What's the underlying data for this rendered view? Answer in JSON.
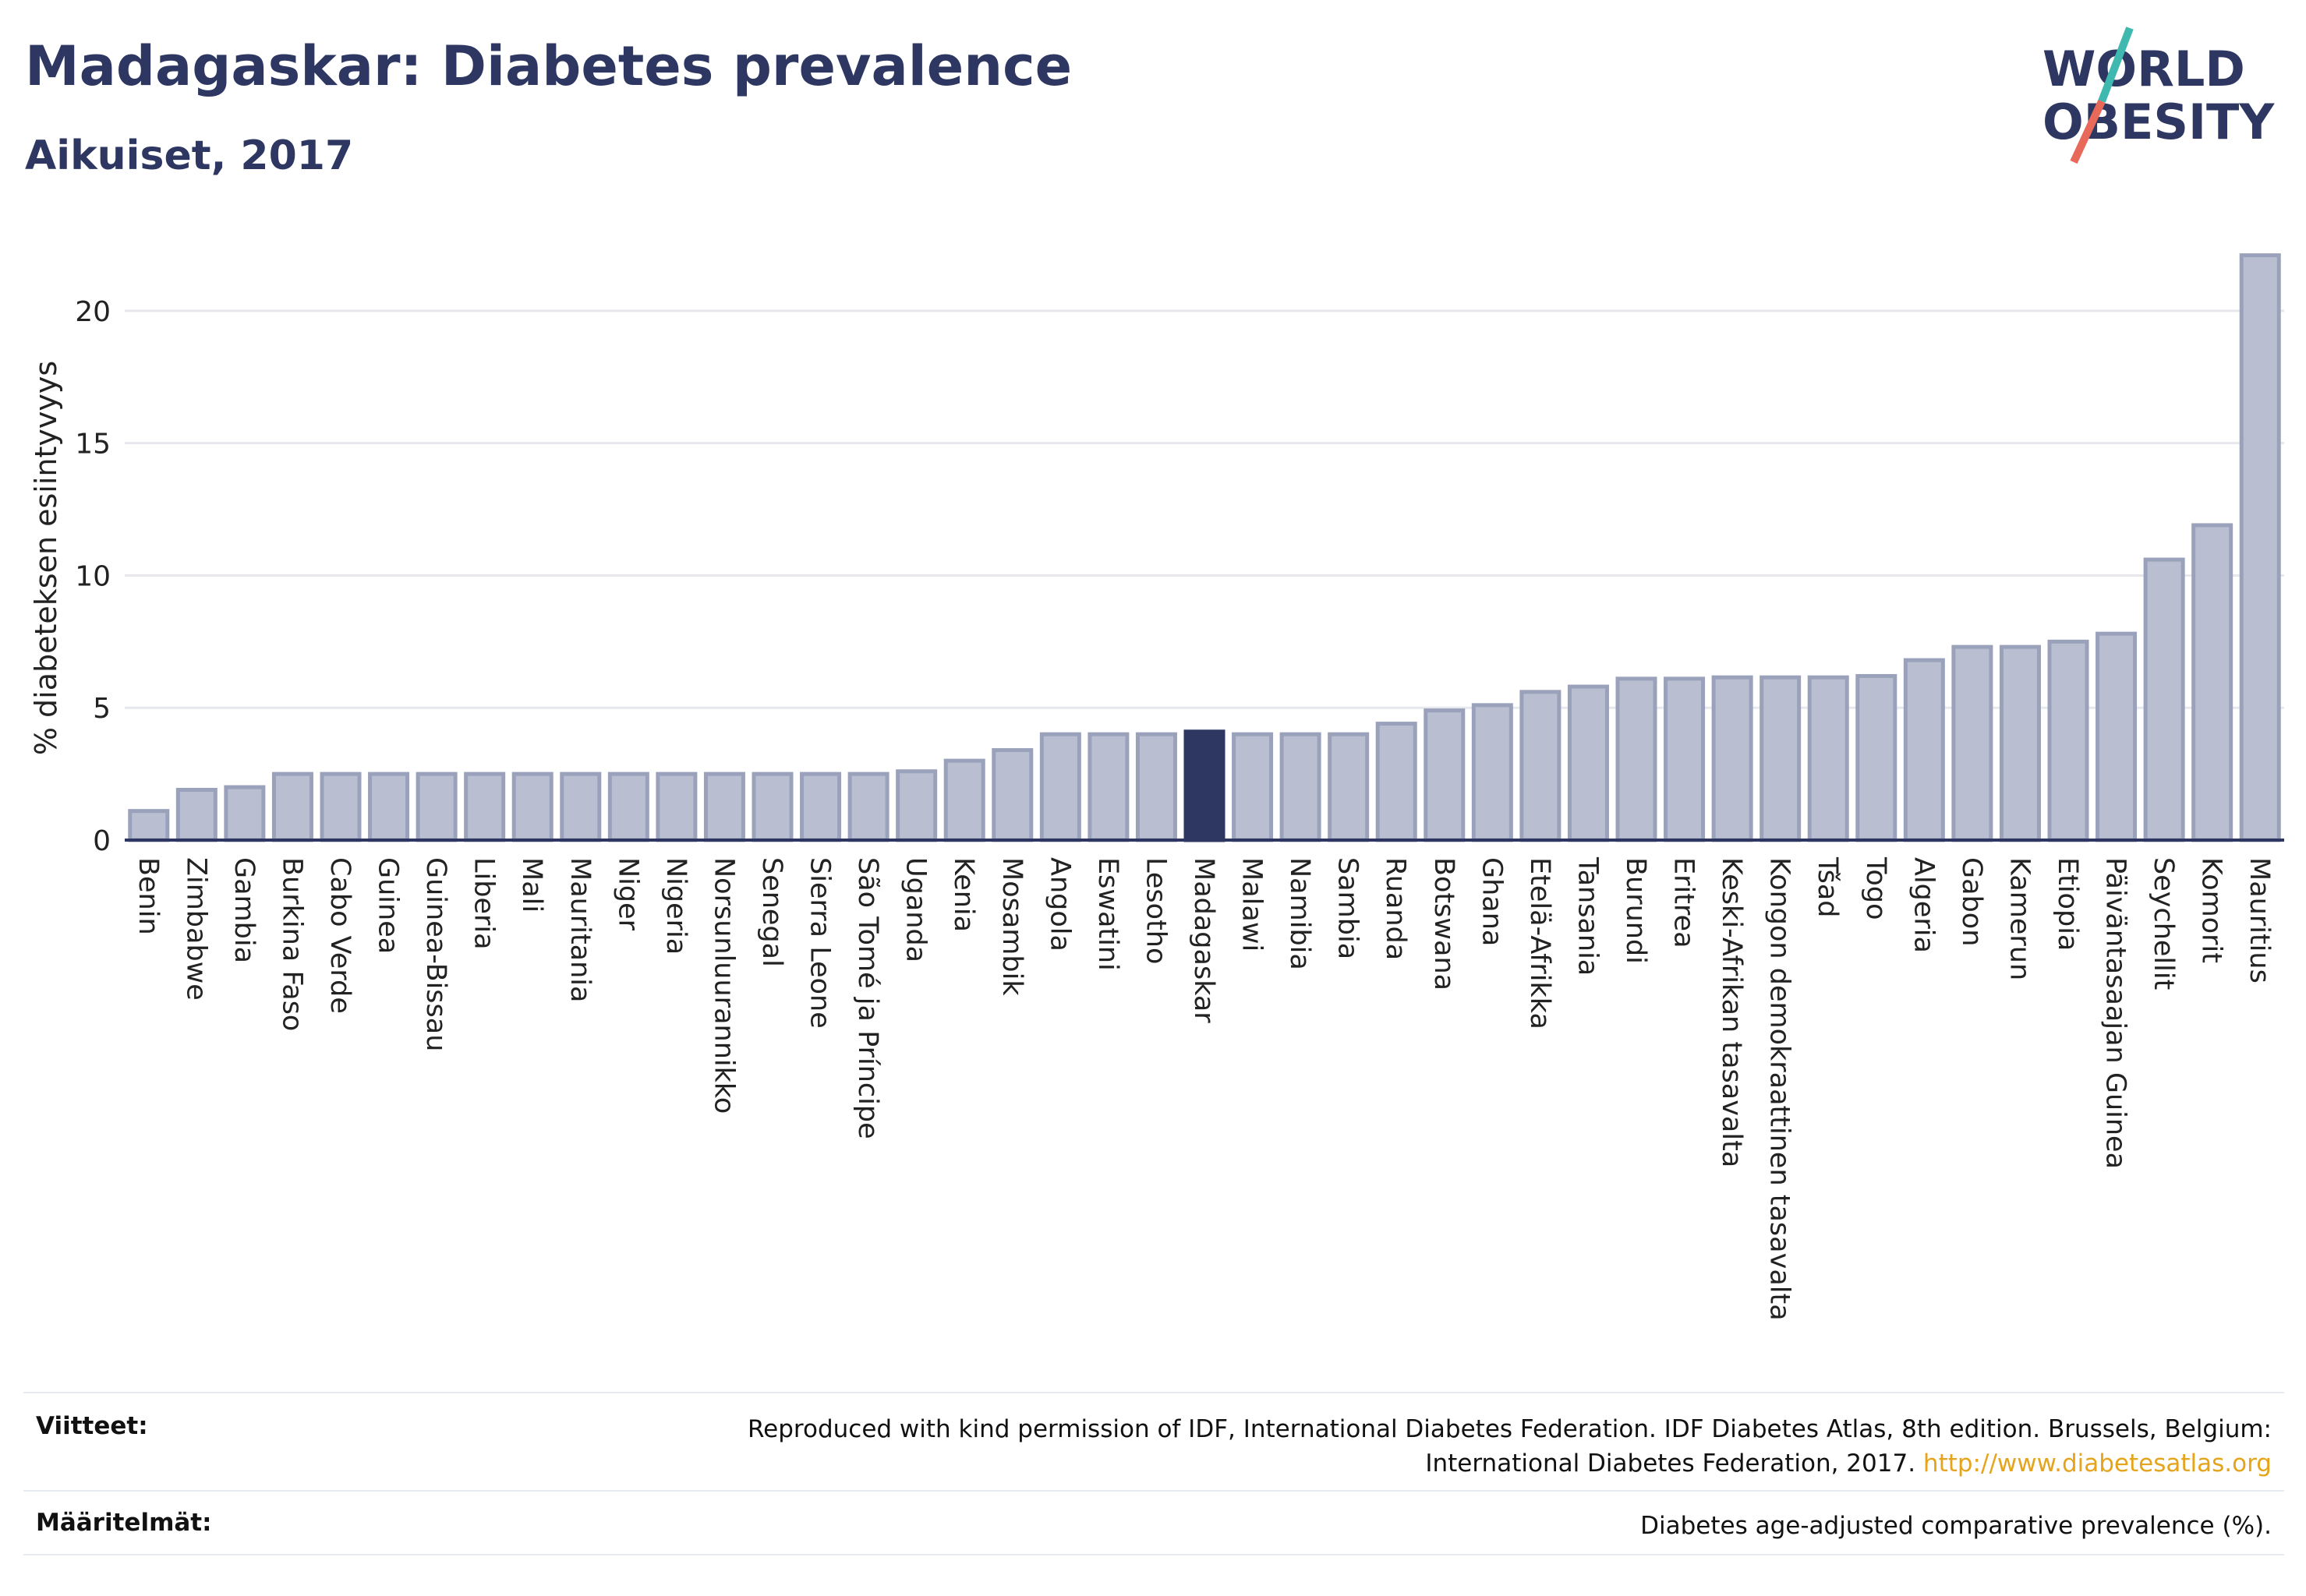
{
  "header": {
    "title": "Madagaskar: Diabetes prevalence",
    "subtitle": "Aikuiset, 2017"
  },
  "logo": {
    "line1": "WORLD",
    "line2": "OBESITY",
    "accent_teal": "#3fb8b0",
    "accent_red": "#e8695a",
    "text_color": "#2d3761"
  },
  "colors": {
    "bar_fill": "#b9bed1",
    "bar_stroke": "#9aa1bb",
    "highlight_fill": "#2d3761",
    "grid": "#e6e8ee",
    "axis": "#2d3761"
  },
  "chart_data": {
    "type": "bar",
    "ylabel": "% diabeteksen esiintyvyys",
    "ylim": [
      0,
      22.5
    ],
    "yticks": [
      0,
      5,
      10,
      15,
      20
    ],
    "grid": true,
    "highlight": "Madagaskar",
    "categories": [
      "Benin",
      "Zimbabwe",
      "Gambia",
      "Burkina Faso",
      "Cabo Verde",
      "Guinea",
      "Guinea-Bissau",
      "Liberia",
      "Mali",
      "Mauritania",
      "Niger",
      "Nigeria",
      "Norsunluurannikko",
      "Senegal",
      "Sierra Leone",
      "São Tomé ja Príncipe",
      "Uganda",
      "Kenia",
      "Mosambik",
      "Angola",
      "Eswatini",
      "Lesotho",
      "Madagaskar",
      "Malawi",
      "Namibia",
      "Sambia",
      "Ruanda",
      "Botswana",
      "Ghana",
      "Etelä-Afrikka",
      "Tansania",
      "Burundi",
      "Eritrea",
      "Keski-Afrikan tasavalta",
      "Kongon demokraattinen tasavalta",
      "Tšad",
      "Togo",
      "Algeria",
      "Gabon",
      "Kamerun",
      "Etiopia",
      "Päiväntasaajan Guinea",
      "Seychellit",
      "Komorit",
      "Mauritius"
    ],
    "values": [
      1.1,
      1.9,
      2.0,
      2.5,
      2.5,
      2.5,
      2.5,
      2.5,
      2.5,
      2.5,
      2.5,
      2.5,
      2.5,
      2.5,
      2.5,
      2.5,
      2.6,
      3.0,
      3.4,
      4.0,
      4.0,
      4.0,
      4.1,
      4.0,
      4.0,
      4.0,
      4.4,
      4.9,
      5.1,
      5.6,
      5.8,
      6.1,
      6.1,
      6.15,
      6.15,
      6.15,
      6.2,
      6.8,
      7.3,
      7.3,
      7.5,
      7.8,
      10.6,
      11.9,
      22.1
    ]
  },
  "footer": {
    "sources_label": "Viitteet:",
    "sources_text_1": "Reproduced with kind permission of IDF, International Diabetes Federation. IDF Diabetes Atlas, 8th edition. Brussels, Belgium:",
    "sources_text_2": "International Diabetes Federation, 2017.",
    "sources_link": "http://www.diabetesatlas.org",
    "definitions_label": "Määritelmät:",
    "definitions_text": "Diabetes age-adjusted comparative prevalence (%)."
  }
}
